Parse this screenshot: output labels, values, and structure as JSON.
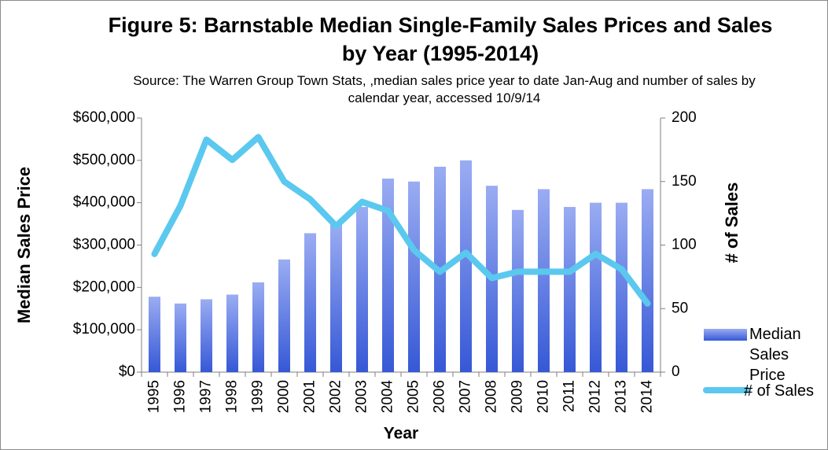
{
  "chart_data": {
    "type": "bar-line",
    "title": "Figure 5:  Barnstable Median Single-Family Sales Prices and Sales by Year (1995-2014)",
    "subtitle": "Source:  The Warren Group Town Stats, ,median sales price year to date Jan-Aug and number of sales by calendar year, accessed 10/9/14",
    "x_label": "Year",
    "y_label": "Median Sales Price",
    "y2_label": "# of Sales",
    "categories": [
      "1995",
      "1996",
      "1997",
      "1998",
      "1999",
      "2000",
      "2001",
      "2002",
      "2003",
      "2004",
      "2005",
      "2006",
      "2007",
      "2008",
      "2009",
      "2010",
      "2011",
      "2012",
      "2013",
      "2014"
    ],
    "series": [
      {
        "name": "Median Sales Price",
        "type": "bar",
        "color": "#5b78e6",
        "values": [
          178000,
          162000,
          172000,
          183000,
          212000,
          266000,
          328000,
          350000,
          390000,
          457000,
          450000,
          485000,
          500000,
          440000,
          383000,
          432000,
          390000,
          400000,
          400000,
          432000
        ]
      },
      {
        "name": "# of Sales",
        "type": "line",
        "axis": "y2",
        "color": "#5bc8ef",
        "values": [
          93,
          131,
          183,
          167,
          185,
          150,
          136,
          115,
          134,
          127,
          96,
          79,
          94,
          74,
          79,
          79,
          79,
          93,
          81,
          54
        ]
      }
    ],
    "ylim": [
      0,
      600000
    ],
    "yticks": [
      {
        "value": 0,
        "label": "$0"
      },
      {
        "value": 100000,
        "label": "$100,000"
      },
      {
        "value": 200000,
        "label": "$200,000"
      },
      {
        "value": 300000,
        "label": "$300,000"
      },
      {
        "value": 400000,
        "label": "$400,000"
      },
      {
        "value": 500000,
        "label": "$500,000"
      },
      {
        "value": 600000,
        "label": "$600,000"
      }
    ],
    "y2lim": [
      0,
      200
    ],
    "y2ticks": [
      0,
      50,
      100,
      150,
      200
    ],
    "legend": "right"
  }
}
